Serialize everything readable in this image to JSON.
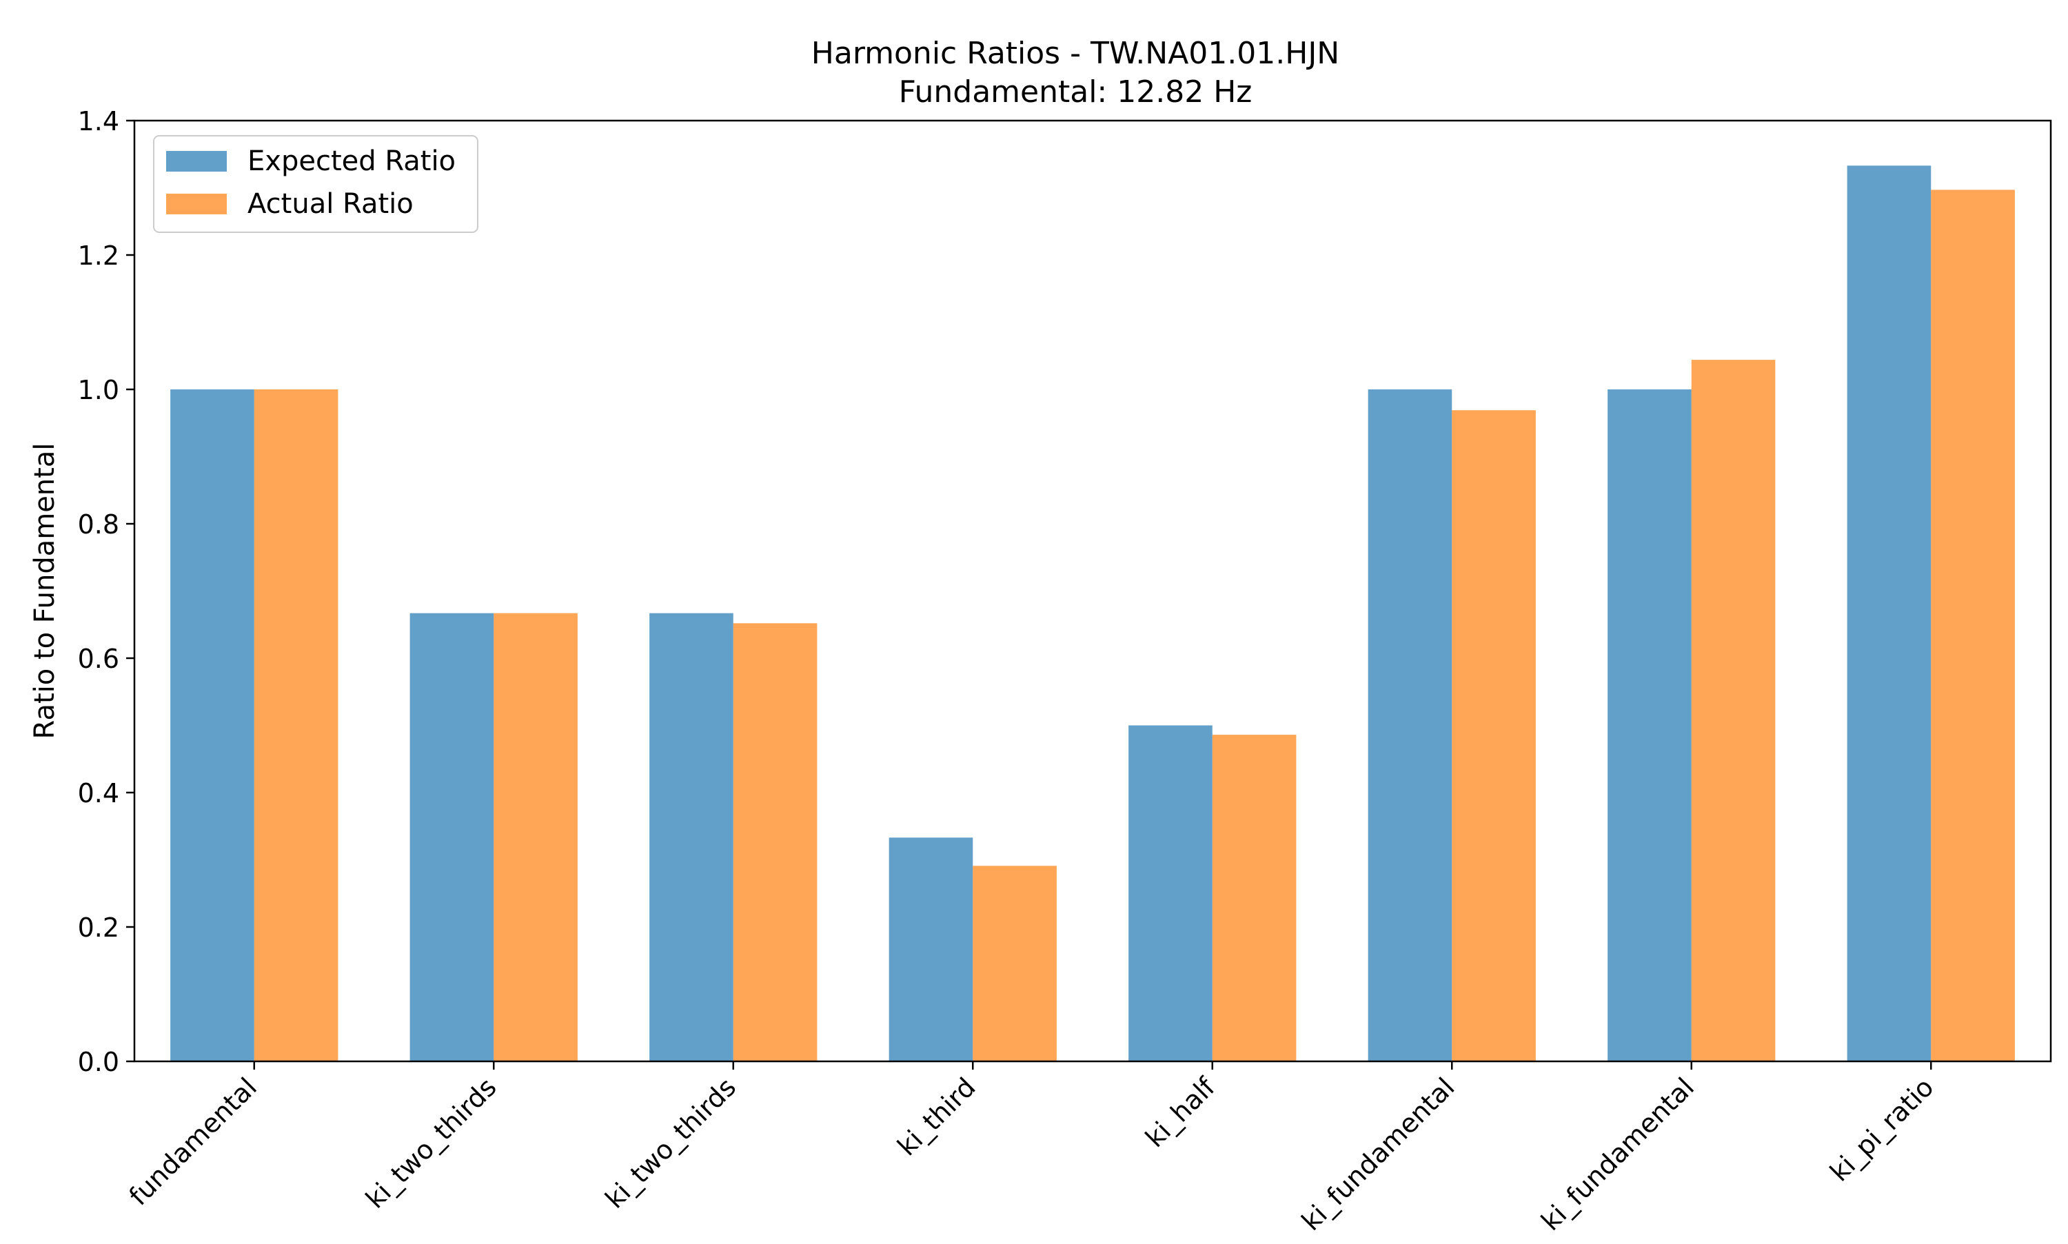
{
  "chart_data": {
    "type": "bar",
    "title": "Harmonic Ratios - TW.NA01.01.HJN",
    "subtitle": "Fundamental: 12.82 Hz",
    "xlabel": "",
    "ylabel": "Ratio to Fundamental",
    "ylim": [
      0,
      1.4
    ],
    "yticks": [
      "0.0",
      "0.2",
      "0.4",
      "0.6",
      "0.8",
      "1.0",
      "1.2",
      "1.4"
    ],
    "grid": false,
    "legend_position": "upper-left",
    "categories": [
      "fundamental",
      "ki_two_thirds",
      "ki_two_thirds",
      "ki_third",
      "ki_half",
      "ki_fundamental",
      "ki_fundamental",
      "ki_pi_ratio"
    ],
    "series": [
      {
        "name": "Expected Ratio",
        "color": "#1f77b4",
        "values": [
          1.0,
          0.667,
          0.667,
          0.333,
          0.5,
          1.0,
          1.0,
          1.333
        ]
      },
      {
        "name": "Actual Ratio",
        "color": "#ff7f0e",
        "values": [
          1.0,
          0.667,
          0.652,
          0.291,
          0.486,
          0.969,
          1.044,
          1.297
        ]
      }
    ]
  }
}
